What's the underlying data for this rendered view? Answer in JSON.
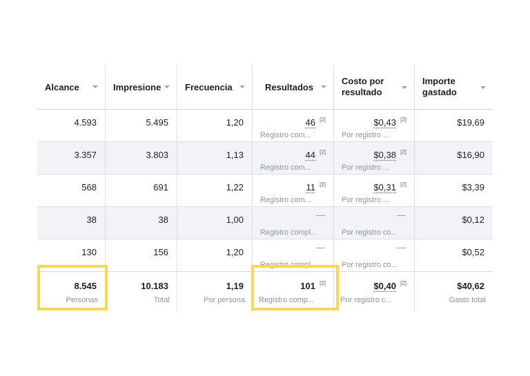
{
  "columns": [
    {
      "label": "Alcance"
    },
    {
      "label": "Impresione"
    },
    {
      "label": "Frecuencia"
    },
    {
      "label": "Resultados"
    },
    {
      "label": "Costo por\nresultado"
    },
    {
      "label": "Importe\ngastado"
    }
  ],
  "rows": [
    {
      "alcance": "4.593",
      "impresiones": "5.495",
      "frecuencia": "1,20",
      "resultados": "46",
      "resultados_note": "[2]",
      "resultados_sub": "Registro com...",
      "costo": "$0,43",
      "costo_note": "[2]",
      "costo_sub": "Por registro ...",
      "importe": "$19,69"
    },
    {
      "alcance": "3.357",
      "impresiones": "3.803",
      "frecuencia": "1,13",
      "resultados": "44",
      "resultados_note": "[2]",
      "resultados_sub": "Registro com...",
      "costo": "$0,38",
      "costo_note": "[2]",
      "costo_sub": "Por registro ...",
      "importe": "$16,90"
    },
    {
      "alcance": "568",
      "impresiones": "691",
      "frecuencia": "1,22",
      "resultados": "11",
      "resultados_note": "[2]",
      "resultados_sub": "Registro com...",
      "costo": "$0,31",
      "costo_note": "[2]",
      "costo_sub": "Por registro ...",
      "importe": "$3,39"
    },
    {
      "alcance": "38",
      "impresiones": "38",
      "frecuencia": "1,00",
      "resultados": "—",
      "resultados_sub": "Registro compl...",
      "costo": "—",
      "costo_sub": "Por registro co...",
      "importe": "$0,12"
    },
    {
      "alcance": "130",
      "impresiones": "156",
      "frecuencia": "1,20",
      "resultados": "—",
      "resultados_sub": "Registro compl...",
      "costo": "—",
      "costo_sub": "Por registro co...",
      "importe": "$0,52"
    }
  ],
  "totals": {
    "alcance": "8.545",
    "alcance_sub": "Personas",
    "impresiones": "10.183",
    "impresiones_sub": "Total",
    "frecuencia": "1,19",
    "frecuencia_sub": "Por persona",
    "resultados": "101",
    "resultados_note": "[2]",
    "resultados_sub": "Registro comp...",
    "costo": "$0,40",
    "costo_note": "[2]",
    "costo_sub": "Por registro c...",
    "importe": "$40,62",
    "importe_sub": "Gasto total"
  },
  "colors": {
    "highlight": "#f7d850",
    "row_alt": "#f2f3f6",
    "border": "#dadde1"
  }
}
